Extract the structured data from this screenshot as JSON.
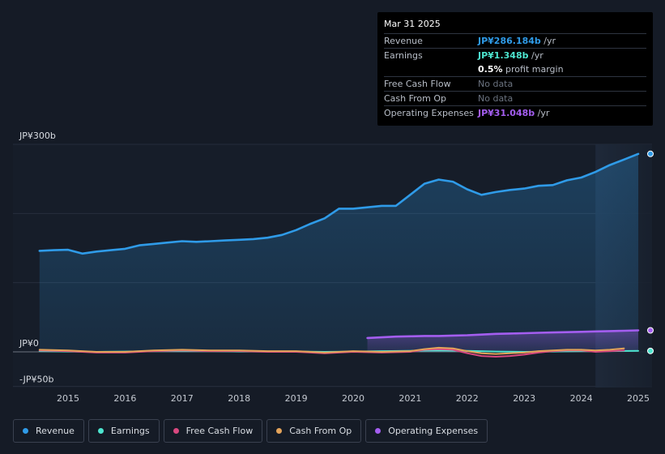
{
  "tooltip": {
    "date": "Mar 31 2025",
    "rows": {
      "revenue": {
        "label": "Revenue",
        "value": "JP¥286.184b",
        "unit": "/yr"
      },
      "earnings": {
        "label": "Earnings",
        "value": "JP¥1.348b",
        "unit": "/yr"
      },
      "margin": {
        "value": "0.5%",
        "text": "profit margin"
      },
      "fcf": {
        "label": "Free Cash Flow",
        "value": "No data"
      },
      "cfo": {
        "label": "Cash From Op",
        "value": "No data"
      },
      "opex": {
        "label": "Operating Expenses",
        "value": "JP¥31.048b",
        "unit": "/yr"
      }
    }
  },
  "legend": {
    "revenue": "Revenue",
    "earnings": "Earnings",
    "fcf": "Free Cash Flow",
    "cfo": "Cash From Op",
    "opex": "Operating Expenses"
  },
  "colors": {
    "revenue": "#2f9be8",
    "earnings": "#4de5cf",
    "fcf": "#d9487f",
    "cfo": "#e3a35a",
    "opex": "#a45ef0",
    "background": "#151b26",
    "forecast": "#1a2332"
  },
  "chart_data": {
    "type": "line",
    "title": "",
    "xlabel": "",
    "ylabel": "",
    "ylim": [
      -50,
      300
    ],
    "y_tick_labels": [
      "JP¥300b",
      "JP¥0",
      "-JP¥50b"
    ],
    "x_tick_labels": [
      "2015",
      "2016",
      "2017",
      "2018",
      "2019",
      "2020",
      "2021",
      "2022",
      "2023",
      "2024",
      "2025"
    ],
    "past_data_start": 2024.25,
    "series": [
      {
        "name": "Revenue",
        "key": "revenue",
        "fill": true,
        "points": [
          [
            2014.5,
            146
          ],
          [
            2014.75,
            147
          ],
          [
            2015.0,
            147.5
          ],
          [
            2015.25,
            142
          ],
          [
            2015.5,
            145
          ],
          [
            2015.75,
            147
          ],
          [
            2016.0,
            149
          ],
          [
            2016.25,
            154
          ],
          [
            2016.5,
            156
          ],
          [
            2016.75,
            158
          ],
          [
            2017.0,
            160
          ],
          [
            2017.25,
            159
          ],
          [
            2017.5,
            160
          ],
          [
            2017.75,
            161
          ],
          [
            2018.0,
            162
          ],
          [
            2018.25,
            163
          ],
          [
            2018.5,
            165
          ],
          [
            2018.75,
            169
          ],
          [
            2019.0,
            176
          ],
          [
            2019.25,
            185
          ],
          [
            2019.5,
            193
          ],
          [
            2019.75,
            207
          ],
          [
            2020.0,
            207
          ],
          [
            2020.25,
            209
          ],
          [
            2020.5,
            211
          ],
          [
            2020.75,
            211
          ],
          [
            2021.0,
            227
          ],
          [
            2021.25,
            243
          ],
          [
            2021.5,
            249
          ],
          [
            2021.75,
            246
          ],
          [
            2022.0,
            235
          ],
          [
            2022.25,
            227
          ],
          [
            2022.5,
            231
          ],
          [
            2022.75,
            234
          ],
          [
            2023.0,
            236
          ],
          [
            2023.25,
            240
          ],
          [
            2023.5,
            241
          ],
          [
            2023.75,
            248
          ],
          [
            2024.0,
            252
          ],
          [
            2024.25,
            260
          ],
          [
            2024.5,
            270
          ],
          [
            2024.75,
            278
          ],
          [
            2025.0,
            286.2
          ]
        ]
      },
      {
        "name": "Earnings",
        "key": "earnings",
        "fill": false,
        "points": [
          [
            2014.5,
            1
          ],
          [
            2015.0,
            0.5
          ],
          [
            2015.5,
            0
          ],
          [
            2016.0,
            0.5
          ],
          [
            2016.5,
            1
          ],
          [
            2017.0,
            1
          ],
          [
            2017.5,
            1
          ],
          [
            2018.0,
            0.5
          ],
          [
            2018.5,
            0.5
          ],
          [
            2019.0,
            0.5
          ],
          [
            2019.5,
            0
          ],
          [
            2020.0,
            0.5
          ],
          [
            2020.5,
            1
          ],
          [
            2021.0,
            1.5
          ],
          [
            2021.5,
            2
          ],
          [
            2022.0,
            1.5
          ],
          [
            2022.5,
            0.5
          ],
          [
            2023.0,
            0
          ],
          [
            2023.5,
            0.5
          ],
          [
            2024.0,
            1
          ],
          [
            2024.5,
            1
          ],
          [
            2025.0,
            1.35
          ]
        ]
      },
      {
        "name": "Free Cash Flow",
        "key": "fcf",
        "fill": false,
        "points": [
          [
            2014.5,
            2
          ],
          [
            2015.0,
            1
          ],
          [
            2015.5,
            -1
          ],
          [
            2016.0,
            -1
          ],
          [
            2016.5,
            1
          ],
          [
            2017.0,
            2
          ],
          [
            2017.5,
            1
          ],
          [
            2018.0,
            1
          ],
          [
            2018.5,
            0
          ],
          [
            2019.0,
            0
          ],
          [
            2019.5,
            -2
          ],
          [
            2020.0,
            0
          ],
          [
            2020.5,
            -1
          ],
          [
            2021.0,
            0
          ],
          [
            2021.25,
            3
          ],
          [
            2021.5,
            4
          ],
          [
            2021.75,
            3
          ],
          [
            2022.0,
            -2
          ],
          [
            2022.25,
            -6
          ],
          [
            2022.5,
            -7
          ],
          [
            2022.75,
            -6
          ],
          [
            2023.0,
            -4
          ],
          [
            2023.25,
            -1
          ],
          [
            2023.5,
            1
          ],
          [
            2023.75,
            2
          ],
          [
            2024.0,
            2
          ],
          [
            2024.25,
            0
          ],
          [
            2024.5,
            1
          ],
          [
            2024.75,
            2
          ]
        ]
      },
      {
        "name": "Cash From Op",
        "key": "cfo",
        "fill": false,
        "points": [
          [
            2014.5,
            3
          ],
          [
            2015.0,
            2
          ],
          [
            2015.5,
            0
          ],
          [
            2016.0,
            0
          ],
          [
            2016.5,
            2
          ],
          [
            2017.0,
            3
          ],
          [
            2017.5,
            2
          ],
          [
            2018.0,
            2
          ],
          [
            2018.5,
            1
          ],
          [
            2019.0,
            1
          ],
          [
            2019.5,
            -1
          ],
          [
            2020.0,
            1
          ],
          [
            2020.5,
            0
          ],
          [
            2021.0,
            1
          ],
          [
            2021.25,
            4
          ],
          [
            2021.5,
            6
          ],
          [
            2021.75,
            5
          ],
          [
            2022.0,
            1
          ],
          [
            2022.25,
            -2
          ],
          [
            2022.5,
            -3
          ],
          [
            2022.75,
            -2
          ],
          [
            2023.0,
            -1
          ],
          [
            2023.25,
            1
          ],
          [
            2023.5,
            2
          ],
          [
            2023.75,
            3
          ],
          [
            2024.0,
            3
          ],
          [
            2024.25,
            2
          ],
          [
            2024.5,
            3
          ],
          [
            2024.75,
            5
          ]
        ]
      },
      {
        "name": "Operating Expenses",
        "key": "opex",
        "fill": true,
        "points": [
          [
            2020.25,
            20
          ],
          [
            2020.5,
            21
          ],
          [
            2020.75,
            22
          ],
          [
            2021.0,
            22.5
          ],
          [
            2021.25,
            23
          ],
          [
            2021.5,
            23
          ],
          [
            2021.75,
            23.5
          ],
          [
            2022.0,
            24
          ],
          [
            2022.25,
            25
          ],
          [
            2022.5,
            26
          ],
          [
            2022.75,
            26.5
          ],
          [
            2023.0,
            27
          ],
          [
            2023.25,
            27.5
          ],
          [
            2023.5,
            28
          ],
          [
            2023.75,
            28.5
          ],
          [
            2024.0,
            29
          ],
          [
            2024.25,
            29.5
          ],
          [
            2024.5,
            30
          ],
          [
            2024.75,
            30.5
          ],
          [
            2025.0,
            31.05
          ]
        ]
      }
    ]
  }
}
